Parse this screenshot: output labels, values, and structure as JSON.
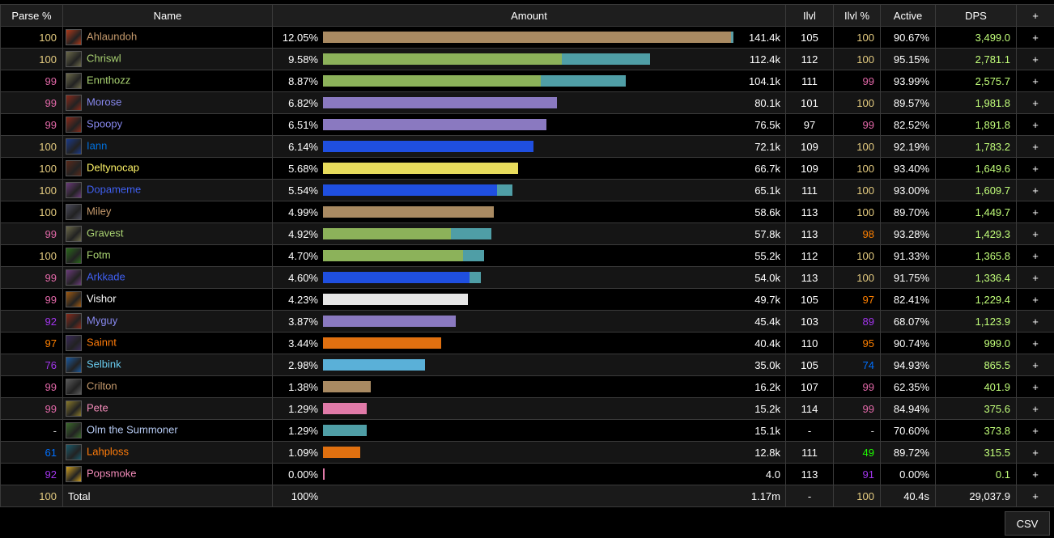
{
  "headers": {
    "parse": "Parse %",
    "name": "Name",
    "amount": "Amount",
    "ilvl": "Ilvl",
    "ilvlpct": "Ilvl %",
    "active": "Active",
    "dps": "DPS",
    "plus": "+"
  },
  "colors": {
    "parse": {
      "100": "#e5cc80",
      "99": "#e268a8",
      "97": "#ff8000",
      "92": "#a335ee",
      "76": "#a335ee",
      "61": "#0070ff",
      "dash": "#999999",
      "98": "#ff8000",
      "95": "#ff8000",
      "91": "#a335ee",
      "89": "#a335ee",
      "74": "#0070ff",
      "49": "#1eff00"
    },
    "dps": "#c2ff7a"
  },
  "rows": [
    {
      "parse": "100",
      "parseColor": "#e5cc80",
      "name": "Ahlaundoh",
      "nameColor": "#c69b6d",
      "icon": "warrior-icon",
      "iconColor": "#b03a1a",
      "pct": "12.05%",
      "bar": [
        {
          "w": 0.995,
          "c": "#a98a62"
        },
        {
          "w": 0.005,
          "c": "#5b9ea6"
        }
      ],
      "barScale": 1.0,
      "amount": "141.4k",
      "ilvl": "105",
      "ilvlpct": "100",
      "ilvlpctColor": "#e5cc80",
      "active": "90.67%",
      "dps": "3,499.0"
    },
    {
      "parse": "100",
      "parseColor": "#e5cc80",
      "name": "Chriswl",
      "nameColor": "#aad372",
      "icon": "hunter-icon",
      "iconColor": "#6c6a4a",
      "pct": "9.58%",
      "bar": [
        {
          "w": 0.73,
          "c": "#8cb25a"
        },
        {
          "w": 0.27,
          "c": "#4f9ea6"
        }
      ],
      "barScale": 0.797,
      "amount": "112.4k",
      "ilvl": "112",
      "ilvlpct": "100",
      "ilvlpctColor": "#e5cc80",
      "active": "95.15%",
      "dps": "2,781.1"
    },
    {
      "parse": "99",
      "parseColor": "#e268a8",
      "name": "Ennthozz",
      "nameColor": "#aad372",
      "icon": "hunter-icon",
      "iconColor": "#6c6a4a",
      "pct": "8.87%",
      "bar": [
        {
          "w": 0.72,
          "c": "#8cb25a"
        },
        {
          "w": 0.28,
          "c": "#4f9ea6"
        }
      ],
      "barScale": 0.737,
      "amount": "104.1k",
      "ilvl": "111",
      "ilvlpct": "99",
      "ilvlpctColor": "#e268a8",
      "active": "93.99%",
      "dps": "2,575.7"
    },
    {
      "parse": "99",
      "parseColor": "#e268a8",
      "name": "Morose",
      "nameColor": "#8788ee",
      "icon": "warlock-icon",
      "iconColor": "#8a2a1a",
      "pct": "6.82%",
      "bar": [
        {
          "w": 1,
          "c": "#8a79c0"
        }
      ],
      "barScale": 0.571,
      "amount": "80.1k",
      "ilvl": "101",
      "ilvlpct": "100",
      "ilvlpctColor": "#e5cc80",
      "active": "89.57%",
      "dps": "1,981.8"
    },
    {
      "parse": "99",
      "parseColor": "#e268a8",
      "name": "Spoopy",
      "nameColor": "#8788ee",
      "icon": "warlock-icon",
      "iconColor": "#8a2a1a",
      "pct": "6.51%",
      "bar": [
        {
          "w": 1,
          "c": "#8a79c0"
        }
      ],
      "barScale": 0.545,
      "amount": "76.5k",
      "ilvl": "97",
      "ilvlpct": "99",
      "ilvlpctColor": "#e268a8",
      "active": "82.52%",
      "dps": "1,891.8"
    },
    {
      "parse": "100",
      "parseColor": "#e5cc80",
      "name": "Iann",
      "nameColor": "#0070dd",
      "icon": "shaman-icon",
      "iconColor": "#1a3a8a",
      "pct": "6.14%",
      "bar": [
        {
          "w": 1,
          "c": "#1f4fe0"
        }
      ],
      "barScale": 0.513,
      "amount": "72.1k",
      "ilvl": "109",
      "ilvlpct": "100",
      "ilvlpctColor": "#e5cc80",
      "active": "92.19%",
      "dps": "1,783.2"
    },
    {
      "parse": "100",
      "parseColor": "#e5cc80",
      "name": "Deltynocap",
      "nameColor": "#fff468",
      "icon": "rogue-icon",
      "iconColor": "#5a2a1a",
      "pct": "5.68%",
      "bar": [
        {
          "w": 1,
          "c": "#e8dc5c"
        }
      ],
      "barScale": 0.475,
      "amount": "66.7k",
      "ilvl": "109",
      "ilvlpct": "100",
      "ilvlpctColor": "#e5cc80",
      "active": "93.40%",
      "dps": "1,649.6"
    },
    {
      "parse": "100",
      "parseColor": "#e5cc80",
      "name": "Dopameme",
      "nameColor": "#3f5ff0",
      "icon": "gnome-shaman-icon",
      "iconColor": "#6a3a7a",
      "pct": "5.54%",
      "bar": [
        {
          "w": 0.92,
          "c": "#1f4fe0"
        },
        {
          "w": 0.08,
          "c": "#4f9ea6"
        }
      ],
      "barScale": 0.462,
      "amount": "65.1k",
      "ilvl": "111",
      "ilvlpct": "100",
      "ilvlpctColor": "#e5cc80",
      "active": "93.00%",
      "dps": "1,609.7"
    },
    {
      "parse": "100",
      "parseColor": "#e5cc80",
      "name": "Miley",
      "nameColor": "#c69b6d",
      "icon": "warrior-icon",
      "iconColor": "#4a4a5a",
      "pct": "4.99%",
      "bar": [
        {
          "w": 1,
          "c": "#a98a62"
        }
      ],
      "barScale": 0.417,
      "amount": "58.6k",
      "ilvl": "113",
      "ilvlpct": "100",
      "ilvlpctColor": "#e5cc80",
      "active": "89.70%",
      "dps": "1,449.7"
    },
    {
      "parse": "99",
      "parseColor": "#e268a8",
      "name": "Gravest",
      "nameColor": "#aad372",
      "icon": "hunter-icon",
      "iconColor": "#6c6a4a",
      "pct": "4.92%",
      "bar": [
        {
          "w": 0.76,
          "c": "#8cb25a"
        },
        {
          "w": 0.24,
          "c": "#4f9ea6"
        }
      ],
      "barScale": 0.411,
      "amount": "57.8k",
      "ilvl": "113",
      "ilvlpct": "98",
      "ilvlpctColor": "#ff8000",
      "active": "93.28%",
      "dps": "1,429.3"
    },
    {
      "parse": "100",
      "parseColor": "#e5cc80",
      "name": "Fotm",
      "nameColor": "#aad372",
      "icon": "hunter-pet-icon",
      "iconColor": "#2a6a1a",
      "pct": "4.70%",
      "bar": [
        {
          "w": 0.87,
          "c": "#8cb25a"
        },
        {
          "w": 0.13,
          "c": "#4f9ea6"
        }
      ],
      "barScale": 0.393,
      "amount": "55.2k",
      "ilvl": "112",
      "ilvlpct": "100",
      "ilvlpctColor": "#e5cc80",
      "active": "91.33%",
      "dps": "1,365.8"
    },
    {
      "parse": "99",
      "parseColor": "#e268a8",
      "name": "Arkkade",
      "nameColor": "#3f5ff0",
      "icon": "gnome-shaman-icon",
      "iconColor": "#6a3a7a",
      "pct": "4.60%",
      "bar": [
        {
          "w": 0.93,
          "c": "#1f4fe0"
        },
        {
          "w": 0.07,
          "c": "#4f9ea6"
        }
      ],
      "barScale": 0.384,
      "amount": "54.0k",
      "ilvl": "113",
      "ilvlpct": "100",
      "ilvlpctColor": "#e5cc80",
      "active": "91.75%",
      "dps": "1,336.4"
    },
    {
      "parse": "99",
      "parseColor": "#e268a8",
      "name": "Vishor",
      "nameColor": "#ffffff",
      "icon": "priest-icon",
      "iconColor": "#a05a10",
      "pct": "4.23%",
      "bar": [
        {
          "w": 1,
          "c": "#e6e6e6"
        }
      ],
      "barScale": 0.354,
      "amount": "49.7k",
      "ilvl": "105",
      "ilvlpct": "97",
      "ilvlpctColor": "#ff8000",
      "active": "82.41%",
      "dps": "1,229.4"
    },
    {
      "parse": "92",
      "parseColor": "#a335ee",
      "name": "Myguy",
      "nameColor": "#8788ee",
      "icon": "warlock-icon",
      "iconColor": "#8a2a1a",
      "pct": "3.87%",
      "bar": [
        {
          "w": 1,
          "c": "#8a79c0"
        }
      ],
      "barScale": 0.323,
      "amount": "45.4k",
      "ilvl": "103",
      "ilvlpct": "89",
      "ilvlpctColor": "#a335ee",
      "active": "68.07%",
      "dps": "1,123.9"
    },
    {
      "parse": "97",
      "parseColor": "#ff8000",
      "name": "Sainnt",
      "nameColor": "#ff7c0a",
      "icon": "mage-icon",
      "iconColor": "#3a2a5a",
      "pct": "3.44%",
      "bar": [
        {
          "w": 1,
          "c": "#e07010"
        }
      ],
      "barScale": 0.287,
      "amount": "40.4k",
      "ilvl": "110",
      "ilvlpct": "95",
      "ilvlpctColor": "#ff8000",
      "active": "90.74%",
      "dps": "999.0"
    },
    {
      "parse": "76",
      "parseColor": "#a335ee",
      "name": "Selbink",
      "nameColor": "#69ccf0",
      "icon": "mage-frost-icon",
      "iconColor": "#1a5aa0",
      "pct": "2.98%",
      "bar": [
        {
          "w": 1,
          "c": "#5ab0d8"
        }
      ],
      "barScale": 0.249,
      "amount": "35.0k",
      "ilvl": "105",
      "ilvlpct": "74",
      "ilvlpctColor": "#0070ff",
      "active": "94.93%",
      "dps": "865.5"
    },
    {
      "parse": "99",
      "parseColor": "#e268a8",
      "name": "Crilton",
      "nameColor": "#c69b6d",
      "icon": "shield-icon",
      "iconColor": "#5a5a5a",
      "pct": "1.38%",
      "bar": [
        {
          "w": 1,
          "c": "#a98a62"
        }
      ],
      "barScale": 0.116,
      "amount": "16.2k",
      "ilvl": "107",
      "ilvlpct": "99",
      "ilvlpctColor": "#e268a8",
      "active": "62.35%",
      "dps": "401.9"
    },
    {
      "parse": "99",
      "parseColor": "#e268a8",
      "name": "Pete",
      "nameColor": "#f48cba",
      "icon": "paladin-icon",
      "iconColor": "#8a7a2a",
      "pct": "1.29%",
      "bar": [
        {
          "w": 1,
          "c": "#e07aa8"
        }
      ],
      "barScale": 0.107,
      "amount": "15.2k",
      "ilvl": "114",
      "ilvlpct": "99",
      "ilvlpctColor": "#e268a8",
      "active": "84.94%",
      "dps": "375.6"
    },
    {
      "parse": "-",
      "parseColor": "#cccccc",
      "name": "Olm the Summoner",
      "nameColor": "#b4c8f0",
      "icon": "summoner-icon",
      "iconColor": "#3a6a2a",
      "pct": "1.29%",
      "bar": [
        {
          "w": 1,
          "c": "#4f9ea6"
        }
      ],
      "barScale": 0.107,
      "amount": "15.1k",
      "ilvl": "-",
      "ilvlpct": "-",
      "ilvlpctColor": "#cccccc",
      "active": "70.60%",
      "dps": "373.8"
    },
    {
      "parse": "61",
      "parseColor": "#0070ff",
      "name": "Lahploss",
      "nameColor": "#ff7c0a",
      "icon": "druid-icon",
      "iconColor": "#1a5a6a",
      "pct": "1.09%",
      "bar": [
        {
          "w": 1,
          "c": "#e07010"
        }
      ],
      "barScale": 0.091,
      "amount": "12.8k",
      "ilvl": "111",
      "ilvlpct": "49",
      "ilvlpctColor": "#1eff00",
      "active": "89.72%",
      "dps": "315.5"
    },
    {
      "parse": "92",
      "parseColor": "#a335ee",
      "name": "Popsmoke",
      "nameColor": "#f48cba",
      "icon": "holy-light-icon",
      "iconColor": "#d0a020",
      "pct": "0.00%",
      "bar": [
        {
          "w": 1,
          "c": "#e07aa8"
        }
      ],
      "barScale": 0.003,
      "amount": "4.0",
      "ilvl": "113",
      "ilvlpct": "91",
      "ilvlpctColor": "#a335ee",
      "active": "0.00%",
      "dps": "0.1"
    }
  ],
  "total": {
    "parse": "100",
    "parseColor": "#e5cc80",
    "name": "Total",
    "pct": "100%",
    "amount": "1.17m",
    "ilvl": "-",
    "ilvlpct": "100",
    "ilvlpctColor": "#e5cc80",
    "active": "40.4s",
    "dps": "29,037.9"
  },
  "csv_label": "CSV"
}
